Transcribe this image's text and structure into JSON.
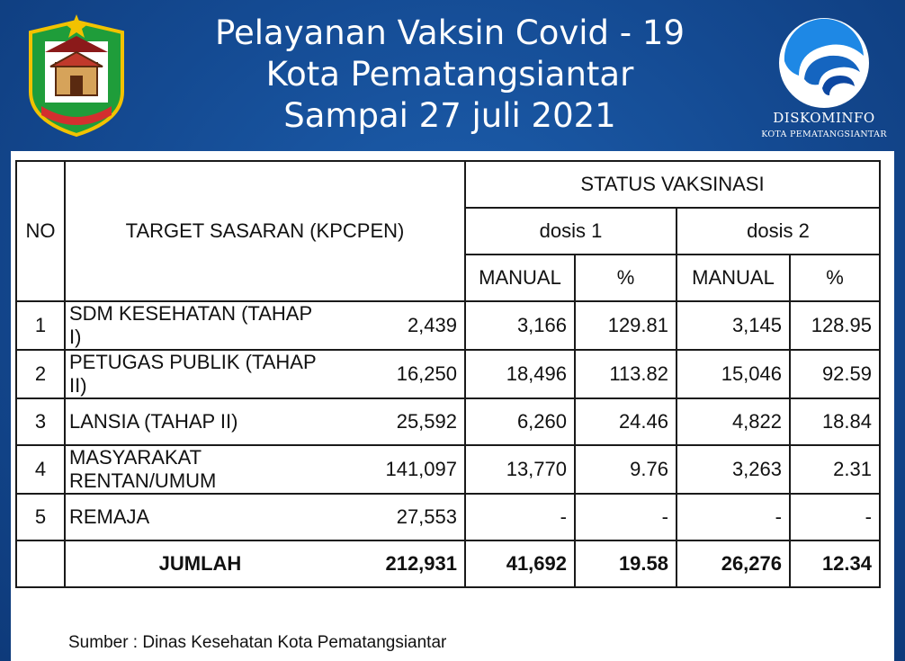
{
  "header": {
    "title_lines": [
      "Pelayanan Vaksin Covid - 19",
      "Kota Pematangsiantar",
      "Sampai 27 juli 2021"
    ],
    "right_logo_name": "DISKOMINFO",
    "right_logo_sub": "KOTA PEMATANGSIANTAR",
    "left_logo_icon": "city-emblem-icon",
    "right_logo_icon": "diskominfo-logo-icon"
  },
  "table": {
    "headers": {
      "no": "NO",
      "target": "TARGET SASARAN (KPCPEN)",
      "status": "STATUS VAKSINASI",
      "dose1": "dosis 1",
      "dose2": "dosis 2",
      "manual": "MANUAL",
      "percent": "%"
    },
    "rows": [
      {
        "no": "1",
        "name": "SDM KESEHATAN (TAHAP I)",
        "target": "2,439",
        "d1_manual": "3,166",
        "d1_pct": "129.81",
        "d2_manual": "3,145",
        "d2_pct": "128.95"
      },
      {
        "no": "2",
        "name": "PETUGAS PUBLIK (TAHAP II)",
        "target": "16,250",
        "d1_manual": "18,496",
        "d1_pct": "113.82",
        "d2_manual": "15,046",
        "d2_pct": "92.59"
      },
      {
        "no": "3",
        "name": "LANSIA (TAHAP II)",
        "target": "25,592",
        "d1_manual": "6,260",
        "d1_pct": "24.46",
        "d2_manual": "4,822",
        "d2_pct": "18.84"
      },
      {
        "no": "4",
        "name": "MASYARAKAT RENTAN/UMUM",
        "target": "141,097",
        "d1_manual": "13,770",
        "d1_pct": "9.76",
        "d2_manual": "3,263",
        "d2_pct": "2.31"
      },
      {
        "no": "5",
        "name": "REMAJA",
        "target": "27,553",
        "d1_manual": "-",
        "d1_pct": "-",
        "d2_manual": "-",
        "d2_pct": "-"
      }
    ],
    "total": {
      "no": "",
      "label": "JUMLAH",
      "target": "212,931",
      "d1_manual": "41,692",
      "d1_pct": "19.58",
      "d2_manual": "26,276",
      "d2_pct": "12.34"
    }
  },
  "source": "Sumber : Dinas Kesehatan Kota Pematangsiantar"
}
